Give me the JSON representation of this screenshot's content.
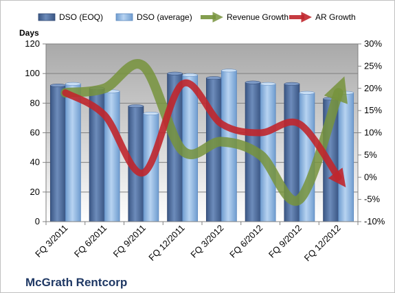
{
  "chart_data": {
    "type": "bar",
    "title": "McGrath Rentcorp",
    "ylabel": "Days",
    "ylim": [
      0,
      120
    ],
    "y2lim": [
      -10,
      30
    ],
    "yticks": [
      "0",
      "20",
      "40",
      "60",
      "80",
      "100",
      "120"
    ],
    "y2ticks": [
      "-10%",
      "-5%",
      "0%",
      "5%",
      "10%",
      "15%",
      "20%",
      "25%",
      "30%"
    ],
    "categories": [
      "FQ 3/2011",
      "FQ 6/2011",
      "FQ 9/2011",
      "FQ 12/2011",
      "FQ 3/2012",
      "FQ 6/2012",
      "FQ 9/2012",
      "FQ 12/2012"
    ],
    "series": [
      {
        "name": "DSO (EOQ)",
        "type": "bar",
        "axis": "left",
        "color": "#4f6fa0",
        "values": [
          92,
          90,
          78,
          100,
          97,
          94,
          93,
          83
        ]
      },
      {
        "name": "DSO (average)",
        "type": "bar",
        "axis": "left",
        "color": "#8db4e2",
        "values": [
          93,
          88,
          73,
          99,
          102,
          93,
          87,
          87
        ]
      },
      {
        "name": "Revenue Growth",
        "type": "line",
        "axis": "right",
        "color": "#77933c",
        "values": [
          19,
          20,
          25,
          6,
          8,
          5,
          -5,
          19
        ]
      },
      {
        "name": "AR Growth",
        "type": "line",
        "axis": "right",
        "color": "#c0262c",
        "values": [
          19,
          14,
          1,
          21,
          12,
          10,
          12,
          0
        ]
      }
    ],
    "legend_position": "top",
    "grid": true
  }
}
